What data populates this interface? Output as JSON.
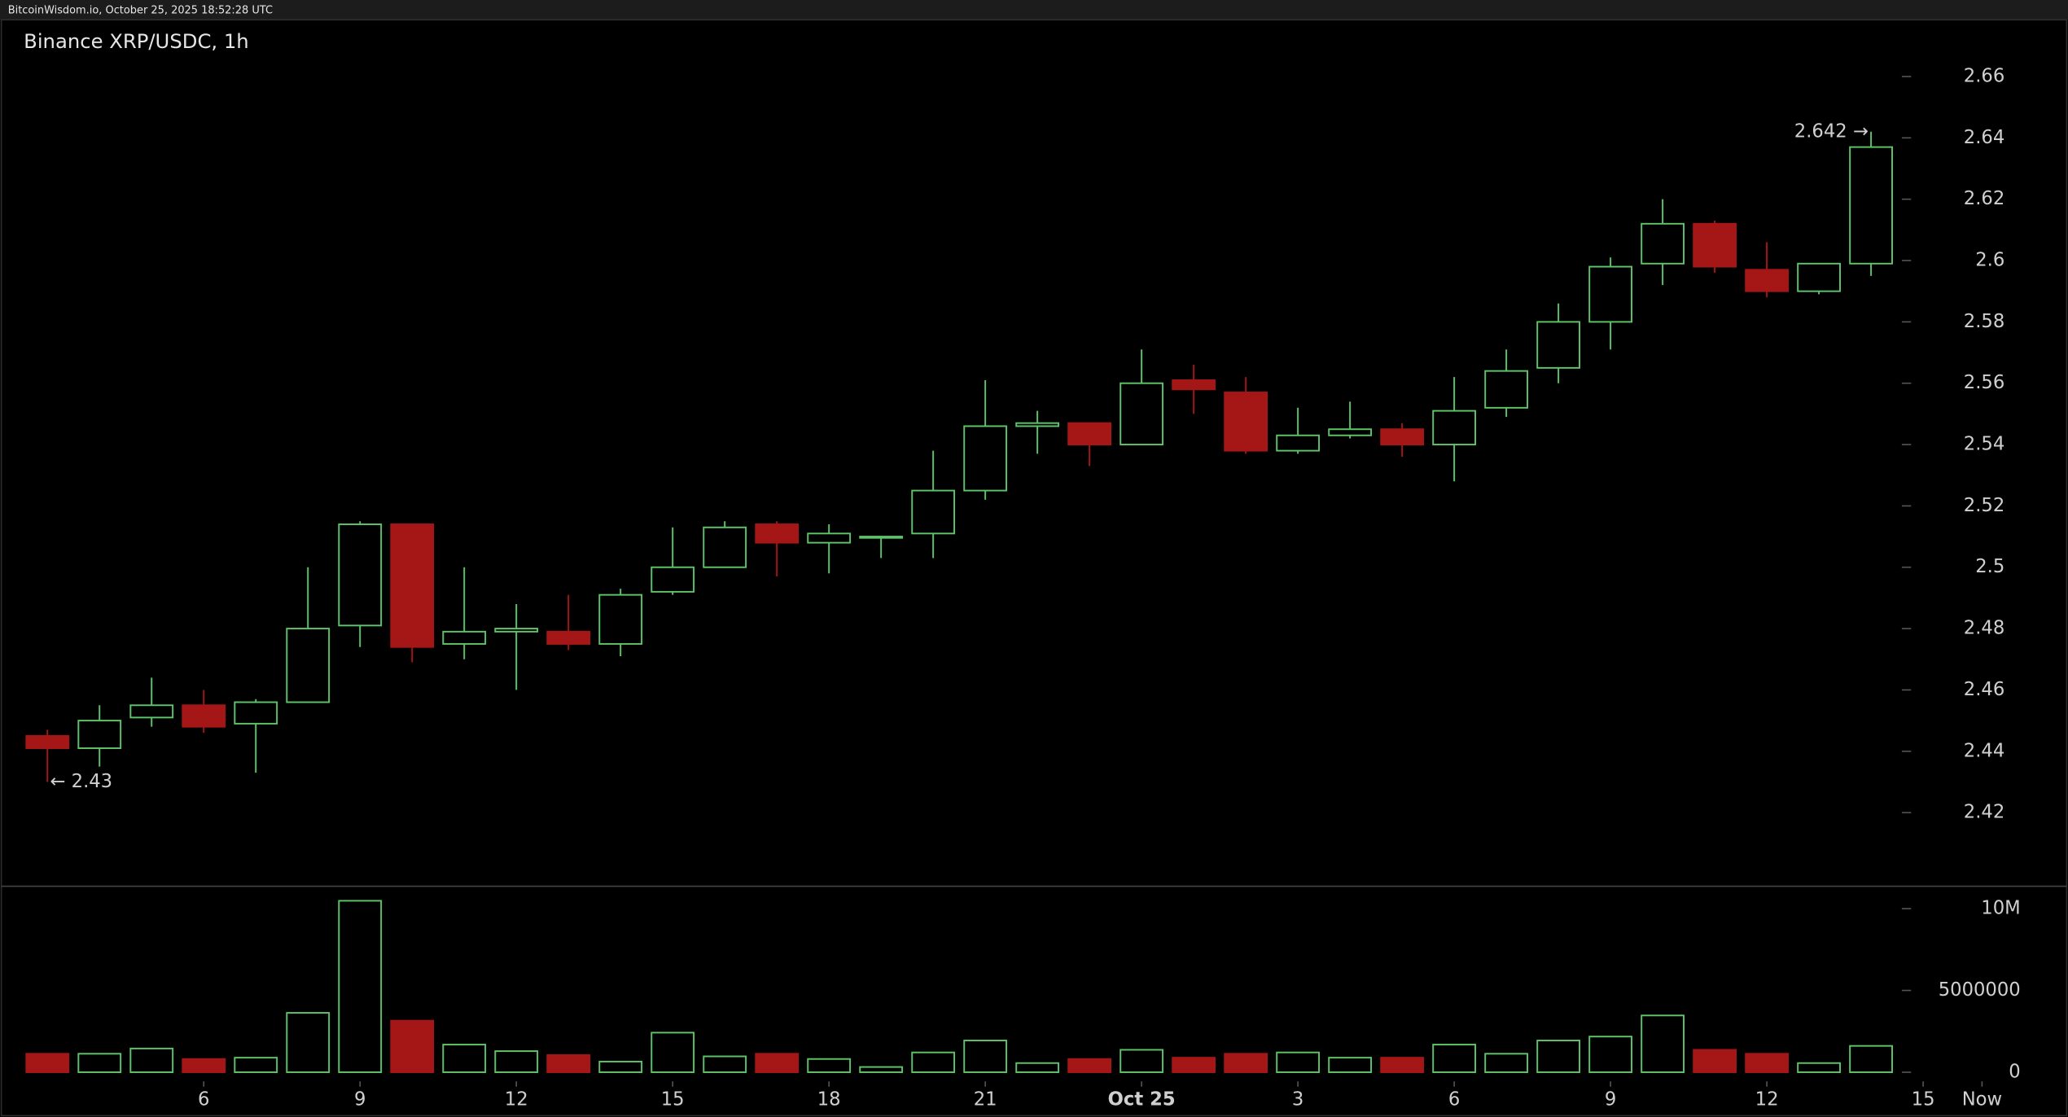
{
  "chart_data": {
    "type": "candlestick",
    "source": "BitcoinWisdom.io, October 25, 2025 18:52:28 UTC",
    "title": "Binance XRP/USDC, 1h",
    "open": [
      2.445,
      2.441,
      2.451,
      2.455,
      2.449,
      2.456,
      2.481,
      2.514,
      2.475,
      2.479,
      2.479,
      2.475,
      2.492,
      2.5,
      2.514,
      2.508,
      2.51,
      2.511,
      2.525,
      2.546,
      2.547,
      2.54,
      2.561,
      2.557,
      2.538,
      2.543,
      2.545,
      2.54,
      2.552,
      2.565,
      2.58,
      2.599,
      2.612,
      2.597,
      2.59,
      2.599
    ],
    "high": [
      2.447,
      2.455,
      2.464,
      2.46,
      2.457,
      2.5,
      2.515,
      2.514,
      2.5,
      2.488,
      2.491,
      2.493,
      2.513,
      2.515,
      2.515,
      2.514,
      2.51,
      2.538,
      2.561,
      2.551,
      2.547,
      2.571,
      2.566,
      2.562,
      2.552,
      2.554,
      2.547,
      2.562,
      2.571,
      2.586,
      2.601,
      2.62,
      2.613,
      2.606,
      2.599,
      2.642
    ],
    "low": [
      2.43,
      2.435,
      2.448,
      2.446,
      2.433,
      2.456,
      2.474,
      2.469,
      2.47,
      2.46,
      2.473,
      2.471,
      2.491,
      2.5,
      2.497,
      2.498,
      2.503,
      2.503,
      2.522,
      2.537,
      2.533,
      2.54,
      2.55,
      2.537,
      2.537,
      2.542,
      2.536,
      2.528,
      2.549,
      2.56,
      2.571,
      2.592,
      2.596,
      2.588,
      2.589,
      2.595
    ],
    "close": [
      2.441,
      2.45,
      2.455,
      2.448,
      2.456,
      2.48,
      2.514,
      2.474,
      2.479,
      2.48,
      2.475,
      2.491,
      2.5,
      2.513,
      2.508,
      2.511,
      2.51,
      2.525,
      2.546,
      2.547,
      2.54,
      2.56,
      2.558,
      2.538,
      2.543,
      2.545,
      2.54,
      2.551,
      2.564,
      2.58,
      2.598,
      2.612,
      2.598,
      2.59,
      2.599,
      2.637
    ],
    "volume": [
      1130000,
      1130000,
      1450000,
      810000,
      890000,
      3630000,
      10480000,
      3150000,
      1690000,
      1290000,
      1050000,
      650000,
      2420000,
      970000,
      1130000,
      810000,
      320000,
      1210000,
      1940000,
      560000,
      810000,
      1370000,
      890000,
      1130000,
      1210000,
      890000,
      890000,
      1690000,
      1130000,
      1940000,
      2180000,
      3470000,
      1370000,
      1130000,
      560000,
      1610000
    ],
    "up_color": "#5ec46a",
    "down_color": "#a51616",
    "xlim": [
      -0.91,
      38.78
    ],
    "xticks": [
      {
        "value": 3,
        "label": "6"
      },
      {
        "value": 6,
        "label": "9"
      },
      {
        "value": 9,
        "label": "12"
      },
      {
        "value": 12,
        "label": "15"
      },
      {
        "value": 15,
        "label": "18"
      },
      {
        "value": 18,
        "label": "21"
      },
      {
        "value": 21,
        "label": "Oct 25"
      },
      {
        "value": 24,
        "label": "3"
      },
      {
        "value": 27,
        "label": "6"
      },
      {
        "value": 30,
        "label": "9"
      },
      {
        "value": 33,
        "label": "12"
      },
      {
        "value": 36,
        "label": "15"
      },
      {
        "value": 37.13,
        "label": "Now"
      }
    ],
    "ylim": [
      2.396,
      2.6785
    ],
    "yticks": [
      2.42,
      2.44,
      2.46,
      2.48,
      2.5,
      2.52,
      2.54,
      2.56,
      2.58,
      2.6,
      2.62,
      2.64,
      2.66
    ],
    "volume_ylim": [
      -560000,
      11370000
    ],
    "volume_yticks": [
      0,
      5000000,
      {
        "value": 10000000,
        "label": "10M"
      }
    ],
    "annotations": [
      {
        "text": "2.642 →",
        "x": 35,
        "y": 2.642
      },
      {
        "text": "← 2.43",
        "x": 0,
        "y": 2.43
      }
    ]
  }
}
